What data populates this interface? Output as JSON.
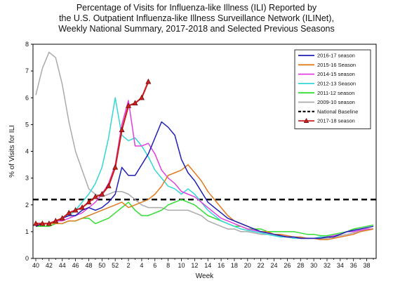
{
  "chart_data": {
    "type": "line",
    "title_lines": [
      "Percentage of Visits for Influenza-like Illness (ILI) Reported by",
      "the U.S. Outpatient Influenza-like Illness Surveillance Network (ILINet),",
      "Weekly National Summary, 2017-2018 and Selected Previous Seasons"
    ],
    "xlabel": "Week",
    "ylabel": "% of Visits for ILI",
    "ylim": [
      0,
      8
    ],
    "yticks": [
      "0",
      "1",
      "2",
      "3",
      "4",
      "5",
      "6",
      "7",
      "8"
    ],
    "x_tick_labels": [
      "40",
      "42",
      "44",
      "46",
      "48",
      "50",
      "52",
      "2",
      "4",
      "6",
      "8",
      "10",
      "12",
      "14",
      "16",
      "18",
      "20",
      "22",
      "24",
      "26",
      "28",
      "30",
      "32",
      "34",
      "36",
      "38"
    ],
    "legend_position": "top-right",
    "baseline": {
      "name": "National Baseline",
      "value": 2.2,
      "color": "#000000"
    },
    "series": [
      {
        "name": "2016-17 season",
        "color": "#1f1fb4",
        "values": [
          1.2,
          1.3,
          1.3,
          1.4,
          1.5,
          1.6,
          1.6,
          1.8,
          1.9,
          1.8,
          1.9,
          2.1,
          2.4,
          3.4,
          3.1,
          3.1,
          3.5,
          3.9,
          4.5,
          5.1,
          4.9,
          4.6,
          3.7,
          3.2,
          2.9,
          2.5,
          2.1,
          1.9,
          1.7,
          1.5,
          1.4,
          1.3,
          1.2,
          1.1,
          1.0,
          0.95,
          0.9,
          0.85,
          0.8,
          0.8,
          0.75,
          0.75,
          0.75,
          0.75,
          0.8,
          0.8,
          0.9,
          1.0,
          1.05,
          1.1,
          1.15,
          1.2
        ]
      },
      {
        "name": "2015-16 Season",
        "color": "#e07a1f",
        "values": [
          1.3,
          1.3,
          1.3,
          1.3,
          1.3,
          1.4,
          1.4,
          1.5,
          1.6,
          1.7,
          1.8,
          1.9,
          2.0,
          2.1,
          1.9,
          2.0,
          2.1,
          2.2,
          2.4,
          2.7,
          3.1,
          3.2,
          3.3,
          3.5,
          3.2,
          2.9,
          2.5,
          2.2,
          1.9,
          1.6,
          1.4,
          1.3,
          1.2,
          1.1,
          1.0,
          1.0,
          0.9,
          0.9,
          0.85,
          0.8,
          0.8,
          0.75,
          0.75,
          0.7,
          0.7,
          0.75,
          0.8,
          0.85,
          0.9,
          1.0,
          1.05,
          1.1
        ]
      },
      {
        "name": "2014-15 season",
        "color": "#e040e0",
        "values": [
          1.3,
          1.3,
          1.3,
          1.4,
          1.4,
          1.5,
          1.6,
          1.7,
          1.9,
          2.1,
          2.4,
          2.8,
          3.5,
          5.0,
          5.9,
          4.2,
          4.2,
          4.3,
          3.9,
          3.3,
          3.0,
          2.8,
          2.5,
          2.4,
          2.3,
          2.1,
          1.9,
          1.7,
          1.5,
          1.4,
          1.3,
          1.2,
          1.1,
          1.05,
          1.0,
          0.95,
          0.9,
          0.85,
          0.8,
          0.8,
          0.75,
          0.75,
          0.75,
          0.75,
          0.8,
          0.85,
          0.9,
          1.0,
          1.0,
          1.05,
          1.1,
          1.1
        ]
      },
      {
        "name": "2012-13 Season",
        "color": "#33d6d6",
        "values": [
          1.2,
          1.3,
          1.3,
          1.4,
          1.5,
          1.6,
          1.8,
          2.1,
          2.4,
          2.8,
          3.4,
          4.5,
          6.0,
          4.6,
          4.4,
          4.5,
          4.2,
          3.8,
          3.3,
          3.0,
          2.7,
          2.6,
          2.4,
          2.6,
          2.4,
          2.1,
          1.8,
          1.6,
          1.4,
          1.3,
          1.2,
          1.1,
          1.05,
          1.0,
          0.95,
          0.9,
          0.85,
          0.8,
          0.8,
          0.75,
          0.75,
          0.75,
          0.75,
          0.8,
          0.8,
          0.85,
          0.9,
          1.0,
          1.0,
          1.05,
          1.1,
          1.1
        ]
      },
      {
        "name": "2011-12 season",
        "color": "#33dd33",
        "values": [
          1.2,
          1.2,
          1.2,
          1.3,
          1.3,
          1.4,
          1.4,
          1.5,
          1.5,
          1.3,
          1.4,
          1.5,
          1.7,
          1.9,
          2.1,
          1.8,
          1.6,
          1.6,
          1.7,
          1.8,
          2.0,
          2.1,
          2.2,
          2.1,
          2.0,
          1.8,
          1.6,
          1.5,
          1.4,
          1.3,
          1.2,
          1.2,
          1.1,
          1.1,
          1.1,
          1.0,
          1.0,
          1.0,
          1.0,
          1.0,
          0.95,
          0.9,
          0.9,
          0.85,
          0.85,
          0.9,
          0.95,
          1.0,
          1.1,
          1.15,
          1.2,
          1.25
        ]
      },
      {
        "name": "2009-10 season",
        "color": "#aaaaaa",
        "values": [
          6.1,
          7.1,
          7.7,
          7.5,
          6.5,
          5.1,
          4.0,
          3.3,
          2.6,
          2.4,
          2.3,
          2.4,
          2.5,
          2.5,
          2.4,
          2.2,
          2.0,
          1.9,
          1.9,
          1.9,
          1.8,
          1.8,
          1.8,
          1.8,
          1.7,
          1.6,
          1.4,
          1.3,
          1.2,
          1.1,
          1.1,
          1.0,
          1.0,
          0.95,
          0.9,
          0.9,
          0.85,
          0.85,
          0.8,
          0.8,
          0.75,
          0.75,
          0.75,
          0.75,
          0.75,
          0.8,
          0.85,
          0.9,
          0.95,
          1.0,
          1.05,
          1.1
        ]
      },
      {
        "name": "2017-18 season",
        "color": "#cc2020",
        "values": [
          1.3,
          1.3,
          1.3,
          1.4,
          1.5,
          1.7,
          1.8,
          1.9,
          2.1,
          2.3,
          2.4,
          2.7,
          3.4,
          4.8,
          5.7,
          5.8,
          6.0,
          6.6
        ]
      }
    ]
  }
}
